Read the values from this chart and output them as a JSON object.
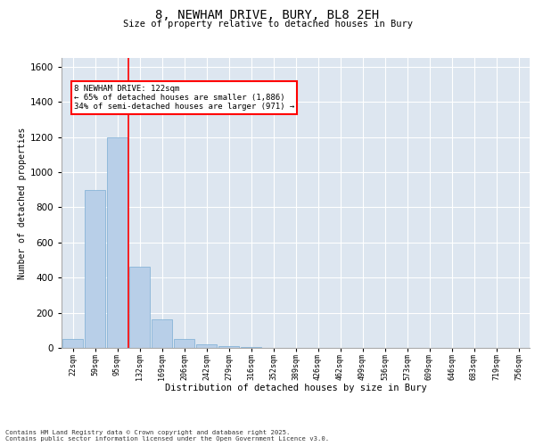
{
  "title1": "8, NEWHAM DRIVE, BURY, BL8 2EH",
  "title2": "Size of property relative to detached houses in Bury",
  "xlabel": "Distribution of detached houses by size in Bury",
  "ylabel": "Number of detached properties",
  "bar_color": "#b8cfe8",
  "bar_edge_color": "#7aadd4",
  "background_color": "#dde6f0",
  "categories": [
    "22sqm",
    "59sqm",
    "95sqm",
    "132sqm",
    "169sqm",
    "206sqm",
    "242sqm",
    "279sqm",
    "316sqm",
    "352sqm",
    "389sqm",
    "426sqm",
    "462sqm",
    "499sqm",
    "536sqm",
    "573sqm",
    "609sqm",
    "646sqm",
    "683sqm",
    "719sqm",
    "756sqm"
  ],
  "values": [
    50,
    900,
    1200,
    460,
    160,
    50,
    20,
    10,
    5,
    0,
    0,
    0,
    0,
    0,
    0,
    0,
    0,
    0,
    0,
    0,
    0
  ],
  "marker_index": 3,
  "annotation_line1": "8 NEWHAM DRIVE: 122sqm",
  "annotation_line2": "← 65% of detached houses are smaller (1,886)",
  "annotation_line3": "34% of semi-detached houses are larger (971) →",
  "ylim": [
    0,
    1650
  ],
  "yticks": [
    0,
    200,
    400,
    600,
    800,
    1000,
    1200,
    1400,
    1600
  ],
  "footer1": "Contains HM Land Registry data © Crown copyright and database right 2025.",
  "footer2": "Contains public sector information licensed under the Open Government Licence v3.0."
}
